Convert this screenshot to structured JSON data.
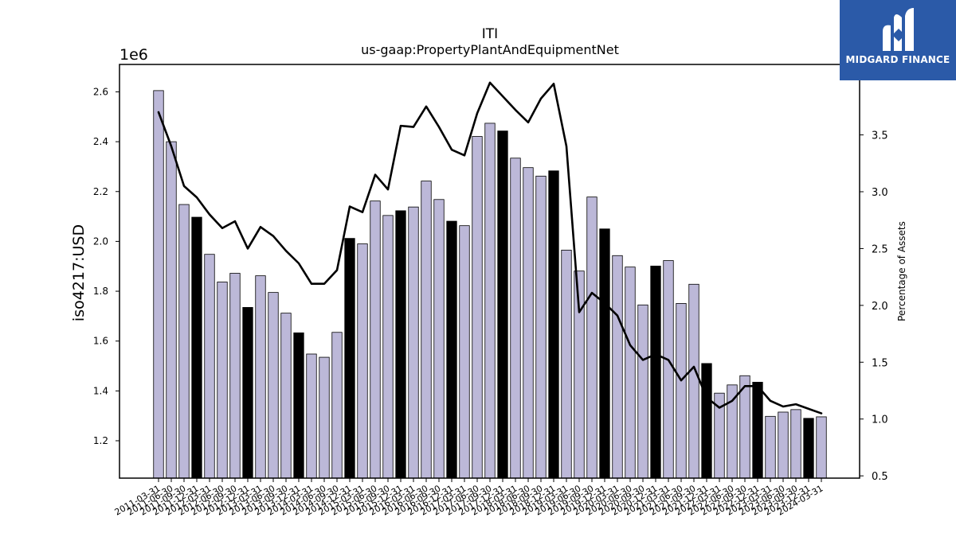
{
  "chart_data": {
    "type": "bar",
    "title": "ITI",
    "subtitle": "us-gaap:PropertyPlantAndEquipmentNet",
    "ylabel": "iso4217:USD",
    "y_offset_label": "1e6",
    "y2label": "Percentage of Assets",
    "ylim": [
      1.05,
      2.71
    ],
    "y2lim": [
      0.48,
      4.12
    ],
    "yticks": [
      "1.2",
      "1.4",
      "1.6",
      "1.8",
      "2.0",
      "2.2",
      "2.4",
      "2.6"
    ],
    "y2ticks": [
      "0.5",
      "1.0",
      "1.5",
      "2.0",
      "2.5",
      "3.0",
      "3.5"
    ],
    "grid": false,
    "categories": [
      "2011-03-31",
      "2011-06-30",
      "2011-09-30",
      "2011-12-31",
      "2012-03-31",
      "2012-06-30",
      "2012-09-30",
      "2012-12-31",
      "2013-03-31",
      "2013-06-30",
      "2013-09-30",
      "2013-12-31",
      "2014-03-31",
      "2014-06-30",
      "2014-09-30",
      "2014-12-31",
      "2015-03-31",
      "2015-06-30",
      "2015-09-30",
      "2015-12-31",
      "2016-03-31",
      "2016-06-30",
      "2016-09-30",
      "2016-12-31",
      "2017-03-31",
      "2017-06-30",
      "2017-09-30",
      "2017-12-31",
      "2018-03-31",
      "2018-06-30",
      "2018-09-30",
      "2018-12-31",
      "2019-03-31",
      "2019-06-30",
      "2019-09-30",
      "2019-12-31",
      "2020-03-31",
      "2020-06-30",
      "2020-09-30",
      "2020-12-31",
      "2021-03-31",
      "2021-06-30",
      "2021-09-30",
      "2021-12-31",
      "2022-03-31",
      "2022-06-30",
      "2022-09-30",
      "2022-12-31",
      "2023-03-31",
      "2023-06-30",
      "2023-09-30",
      "2023-12-31",
      "2024-03-31"
    ],
    "series": [
      {
        "values": [
          2.605,
          2.4,
          2.148,
          2.097,
          1.948,
          1.837,
          1.872,
          1.735,
          1.862,
          1.795,
          1.712,
          1.633,
          1.548,
          1.535,
          1.635,
          2.012,
          1.99,
          2.162,
          2.104,
          2.123,
          2.138,
          2.242,
          2.168,
          2.081,
          2.063,
          2.421,
          2.474,
          2.443,
          2.334,
          2.296,
          2.262,
          2.283,
          1.965,
          1.881,
          2.178,
          2.05,
          1.943,
          1.897,
          1.745,
          1.901,
          1.923,
          1.751,
          1.828,
          1.51,
          1.391,
          1.424,
          1.461,
          1.435,
          1.298,
          1.315,
          1.325,
          1.29,
          1.296
        ],
        "highlight": [
          false,
          false,
          false,
          true,
          false,
          false,
          false,
          true,
          false,
          false,
          false,
          true,
          false,
          false,
          false,
          true,
          false,
          false,
          false,
          true,
          false,
          false,
          false,
          true,
          false,
          false,
          false,
          true,
          false,
          false,
          false,
          true,
          false,
          false,
          false,
          true,
          false,
          false,
          false,
          true,
          false,
          false,
          false,
          true,
          false,
          false,
          false,
          true,
          false,
          false,
          false,
          true,
          false
        ]
      },
      {
        "axis": "secondary",
        "type": "line",
        "values": [
          3.7,
          3.4,
          3.05,
          2.95,
          2.8,
          2.68,
          2.74,
          2.5,
          2.69,
          2.61,
          2.48,
          2.37,
          2.19,
          2.19,
          2.31,
          2.87,
          2.82,
          3.15,
          3.02,
          3.58,
          3.57,
          3.75,
          3.57,
          3.37,
          3.32,
          3.69,
          3.96,
          3.84,
          3.72,
          3.61,
          3.82,
          3.95,
          3.4,
          1.94,
          2.11,
          2.02,
          1.91,
          1.65,
          1.52,
          1.57,
          1.52,
          1.34,
          1.46,
          1.19,
          1.1,
          1.16,
          1.29,
          1.29,
          1.16,
          1.11,
          1.13,
          1.09,
          1.05
        ]
      }
    ],
    "colors": {
      "bar": "#bcb8d8",
      "bar_highlight": "#000000",
      "bar_edge": "#000000",
      "line": "#000000"
    }
  },
  "logo": {
    "text": "MIDGARD FINANCE",
    "bg": "#2b5aa8"
  }
}
